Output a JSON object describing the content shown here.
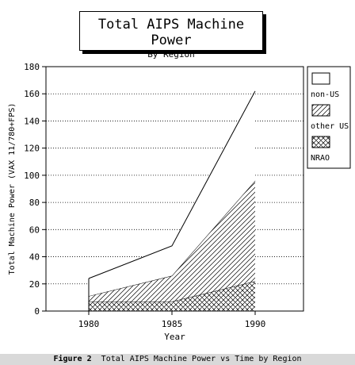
{
  "chart_data": {
    "type": "area",
    "stacked": true,
    "title": "Total AIPS Machine Power",
    "subtitle": "By Region",
    "xlabel": "Year",
    "ylabel": "Total Machine Power (VAX 11/780+FPS)",
    "x": [
      "1980",
      "1985",
      "1990"
    ],
    "ylim": [
      0,
      180
    ],
    "yticks": [
      "0",
      "20",
      "40",
      "60",
      "80",
      "100",
      "120",
      "140",
      "160",
      "180"
    ],
    "grid": "horizontal dotted",
    "legend_position": "right",
    "series": [
      {
        "name": "NRAO",
        "pattern": "crosshatch",
        "values": [
          7,
          7,
          22
        ]
      },
      {
        "name": "other US",
        "pattern": "diagonal",
        "values": [
          4,
          19,
          74
        ]
      },
      {
        "name": "non-US",
        "pattern": "blank",
        "values": [
          13,
          22,
          66
        ]
      }
    ],
    "totals": [
      24,
      48,
      162
    ]
  },
  "caption": {
    "label": "Figure 2",
    "text": "Total AIPS Machine Power vs Time by Region"
  }
}
